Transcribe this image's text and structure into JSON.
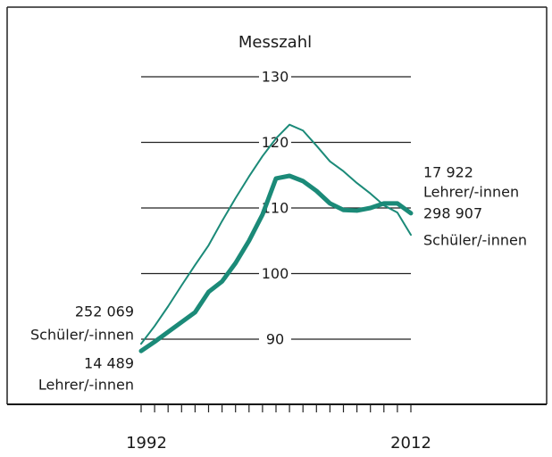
{
  "chart_data": {
    "type": "line",
    "title": "Messzahl",
    "x": [
      1992,
      1993,
      1994,
      1995,
      1996,
      1997,
      1998,
      1999,
      2000,
      2001,
      2002,
      2003,
      2004,
      2005,
      2006,
      2007,
      2008,
      2009,
      2010,
      2011,
      2012
    ],
    "series": [
      {
        "name": "Schüler/-innen",
        "color": "#1b8a78",
        "start_label": "252 069",
        "end_label": "298 907",
        "values": [
          89.3,
          92.0,
          95.0,
          98.2,
          101.3,
          104.3,
          108.0,
          111.5,
          114.8,
          117.9,
          120.6,
          122.7,
          121.8,
          119.5,
          117.1,
          115.6,
          113.8,
          112.2,
          110.4,
          109.3,
          105.9
        ]
      },
      {
        "name": "Lehrer/-innen",
        "color": "#1b8a78",
        "start_label": "14 489",
        "end_label": "17 922",
        "values": [
          88.2,
          89.6,
          91.1,
          92.6,
          94.1,
          97.2,
          98.8,
          101.6,
          105.0,
          109.0,
          114.5,
          114.9,
          114.1,
          112.6,
          110.7,
          109.7,
          109.6,
          110.0,
          110.7,
          110.7,
          109.2
        ]
      }
    ],
    "xlim": [
      1992,
      2012
    ],
    "xticks": [
      1992,
      2012
    ],
    "ylim": [
      90,
      130
    ],
    "yticks": [
      90,
      100,
      110,
      120,
      130
    ],
    "grid": true
  }
}
